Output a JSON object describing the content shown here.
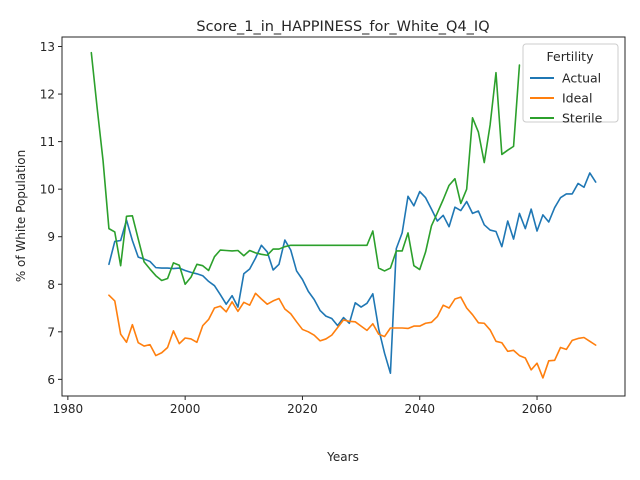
{
  "chart_data": {
    "type": "line",
    "title": "Score_1_in_HAPPINESS_for_White_Q4_IQ",
    "xlabel": "Years",
    "ylabel": "% of White Population",
    "xlim": [
      1979,
      2075
    ],
    "ylim": [
      5.65,
      13.2
    ],
    "xticks": [
      1980,
      2000,
      2020,
      2040,
      2060
    ],
    "yticks": [
      6,
      7,
      8,
      9,
      10,
      11,
      12,
      13
    ],
    "grid": false,
    "legend": {
      "title": "Fertility",
      "placement": "top-right"
    },
    "colors": {
      "Actual": "#1f77b4",
      "Ideal": "#ff7f0e",
      "Sterile": "#2ca02c"
    },
    "series": [
      {
        "name": "Actual",
        "x": [
          1987,
          1988,
          1989,
          1990,
          1991,
          1992,
          1993,
          1994,
          1995,
          1996,
          1997,
          1998,
          1999,
          2000,
          2001,
          2002,
          2003,
          2004,
          2005,
          2006,
          2007,
          2008,
          2009,
          2010,
          2011,
          2012,
          2013,
          2014,
          2015,
          2016,
          2017,
          2018,
          2019,
          2020,
          2021,
          2022,
          2023,
          2024,
          2025,
          2026,
          2027,
          2028,
          2029,
          2030,
          2031,
          2032,
          2033,
          2034,
          2035,
          2036,
          2037,
          2038,
          2039,
          2040,
          2041,
          2042,
          2043,
          2044,
          2045,
          2046,
          2047,
          2048,
          2049,
          2050,
          2051,
          2052,
          2053,
          2054,
          2055,
          2056,
          2057,
          2058,
          2059,
          2060,
          2061,
          2062,
          2063,
          2064,
          2065,
          2066,
          2067,
          2068,
          2069,
          2070
        ],
        "y": [
          8.42,
          8.9,
          8.92,
          9.35,
          8.92,
          8.57,
          8.53,
          8.48,
          8.35,
          8.34,
          8.34,
          8.33,
          8.34,
          8.29,
          8.25,
          8.22,
          8.18,
          8.06,
          7.97,
          7.78,
          7.58,
          7.76,
          7.52,
          8.22,
          8.32,
          8.55,
          8.82,
          8.68,
          8.3,
          8.42,
          8.93,
          8.72,
          8.28,
          8.1,
          7.85,
          7.68,
          7.45,
          7.33,
          7.28,
          7.13,
          7.3,
          7.18,
          7.61,
          7.52,
          7.6,
          7.8,
          7.06,
          6.55,
          6.13,
          8.75,
          9.08,
          9.85,
          9.65,
          9.95,
          9.82,
          9.58,
          9.33,
          9.45,
          9.21,
          9.62,
          9.55,
          9.74,
          9.49,
          9.54,
          9.25,
          9.14,
          9.11,
          8.79,
          9.33,
          8.95,
          9.49,
          9.17,
          9.58,
          9.12,
          9.46,
          9.31,
          9.61,
          9.82,
          9.9,
          9.9,
          10.12,
          10.04,
          10.34,
          10.15
        ]
      },
      {
        "name": "Ideal",
        "x": [
          1987,
          1988,
          1989,
          1990,
          1991,
          1992,
          1993,
          1994,
          1995,
          1996,
          1997,
          1998,
          1999,
          2000,
          2001,
          2002,
          2003,
          2004,
          2005,
          2006,
          2007,
          2008,
          2009,
          2010,
          2011,
          2012,
          2013,
          2014,
          2015,
          2016,
          2017,
          2018,
          2019,
          2020,
          2021,
          2022,
          2023,
          2024,
          2025,
          2026,
          2027,
          2028,
          2029,
          2030,
          2031,
          2032,
          2033,
          2034,
          2035,
          2036,
          2037,
          2038,
          2039,
          2040,
          2041,
          2042,
          2043,
          2044,
          2045,
          2046,
          2047,
          2048,
          2049,
          2050,
          2051,
          2052,
          2053,
          2054,
          2055,
          2056,
          2057,
          2058,
          2059,
          2060,
          2061,
          2062,
          2063,
          2064,
          2065,
          2066,
          2067,
          2068,
          2069,
          2070
        ],
        "y": [
          7.77,
          7.65,
          6.95,
          6.78,
          7.15,
          6.77,
          6.7,
          6.73,
          6.5,
          6.56,
          6.67,
          7.02,
          6.75,
          6.87,
          6.85,
          6.78,
          7.13,
          7.26,
          7.5,
          7.54,
          7.42,
          7.63,
          7.43,
          7.62,
          7.56,
          7.81,
          7.69,
          7.58,
          7.65,
          7.7,
          7.48,
          7.38,
          7.21,
          7.05,
          7.0,
          6.93,
          6.81,
          6.85,
          6.93,
          7.09,
          7.25,
          7.22,
          7.21,
          7.12,
          7.03,
          7.17,
          6.95,
          6.9,
          7.08,
          7.08,
          7.08,
          7.07,
          7.12,
          7.12,
          7.18,
          7.2,
          7.32,
          7.56,
          7.5,
          7.69,
          7.73,
          7.5,
          7.36,
          7.19,
          7.18,
          7.04,
          6.8,
          6.77,
          6.59,
          6.61,
          6.5,
          6.45,
          6.2,
          6.34,
          6.03,
          6.39,
          6.4,
          6.67,
          6.63,
          6.82,
          6.86,
          6.88,
          6.8,
          6.72
        ]
      },
      {
        "name": "Sterile",
        "x": [
          1984,
          1985,
          1986,
          1987,
          1988,
          1989,
          1990,
          1991,
          1992,
          1993,
          1994,
          1995,
          1996,
          1997,
          1998,
          1999,
          2000,
          2001,
          2002,
          2003,
          2004,
          2005,
          2006,
          2007,
          2008,
          2009,
          2010,
          2011,
          2012,
          2013,
          2014,
          2015,
          2016,
          2017,
          2018,
          2019,
          2020,
          2021,
          2022,
          2023,
          2024,
          2025,
          2026,
          2027,
          2028,
          2029,
          2030,
          2031,
          2032,
          2033,
          2034,
          2035,
          2036,
          2037,
          2038,
          2039,
          2040,
          2041,
          2042,
          2043,
          2044,
          2045,
          2046,
          2047,
          2048,
          2049,
          2050,
          2051,
          2052,
          2053,
          2054,
          2055,
          2056,
          2057
        ],
        "y": [
          12.87,
          11.7,
          10.6,
          9.17,
          9.1,
          8.39,
          9.43,
          9.44,
          8.95,
          8.47,
          8.32,
          8.18,
          8.08,
          8.12,
          8.45,
          8.4,
          8.0,
          8.15,
          8.42,
          8.39,
          8.29,
          8.58,
          8.72,
          8.71,
          8.7,
          8.71,
          8.6,
          8.71,
          8.66,
          8.63,
          8.61,
          8.74,
          8.74,
          8.79,
          8.82,
          8.82,
          8.82,
          8.82,
          8.82,
          8.82,
          8.82,
          8.82,
          8.82,
          8.82,
          8.82,
          8.82,
          8.82,
          8.82,
          9.12,
          8.34,
          8.28,
          8.34,
          8.7,
          8.7,
          9.08,
          8.39,
          8.31,
          8.68,
          9.23,
          9.5,
          9.78,
          10.08,
          10.22,
          9.7,
          10.0,
          11.5,
          11.2,
          10.56,
          11.35,
          12.45,
          10.73,
          10.82,
          10.9,
          12.61
        ]
      }
    ]
  }
}
